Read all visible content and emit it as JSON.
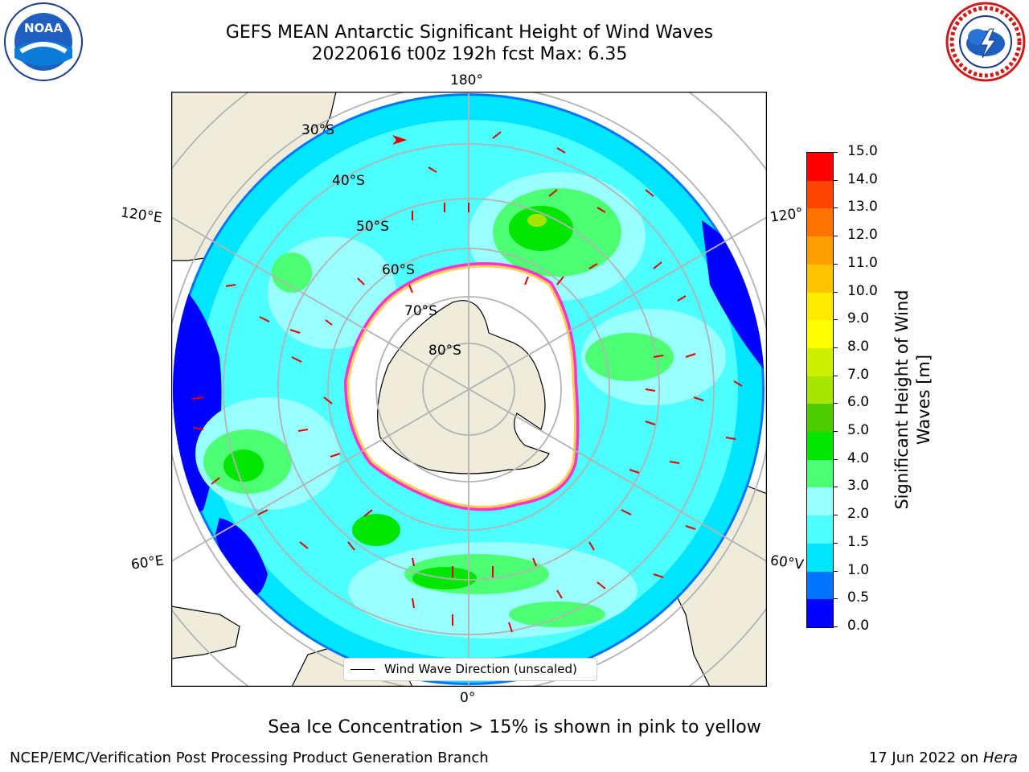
{
  "header": {
    "title_line1": "GEFS MEAN Antarctic Significant Height of Wind Waves",
    "title_line2": "20220616 t00z 192h fcst   Max: 6.35"
  },
  "logos": {
    "left": {
      "text": "NOAA",
      "icon": "noaa-logo-icon"
    },
    "right": {
      "icon": "national-weather-service-logo-icon"
    }
  },
  "map": {
    "projection": "south-polar-stereographic",
    "lon_labels": {
      "top": "180°",
      "bottom": "0°",
      "upper_left": "120°E",
      "upper_right": "120°",
      "lower_left": "60°E",
      "lower_right": "60°V"
    },
    "lat_labels": [
      "30°S",
      "40°S",
      "50°S",
      "60°S",
      "70°S",
      "80°S"
    ],
    "legend_label": "Wind Wave Direction (unscaled)"
  },
  "colorbar": {
    "title_line1": "Significant Height of Wind",
    "title_line2": "Waves [m]",
    "ticks": [
      "0.0",
      "0.5",
      "1.0",
      "1.5",
      "2.0",
      "3.0",
      "4.0",
      "5.0",
      "6.0",
      "7.0",
      "8.0",
      "9.0",
      "10.0",
      "11.0",
      "12.0",
      "13.0",
      "14.0",
      "15.0"
    ],
    "colors": [
      "#0000ff",
      "#0073ff",
      "#00e5ff",
      "#4dffff",
      "#99ffff",
      "#4dff73",
      "#00e600",
      "#4dcc00",
      "#a6e600",
      "#ccf000",
      "#ffff00",
      "#ffea00",
      "#ffc400",
      "#ff9e00",
      "#ff7300",
      "#ff4500",
      "#ff0000"
    ]
  },
  "note": "Sea Ice Concentration > 15% is shown in pink to yellow",
  "footer": {
    "left": "NCEP/EMC/Verification Post Processing Product Generation Branch",
    "right_prefix": "17 Jun 2022 on ",
    "right_host": "Hera"
  }
}
